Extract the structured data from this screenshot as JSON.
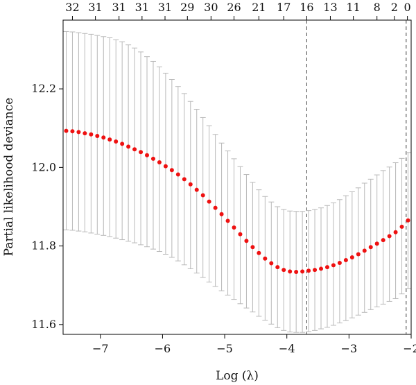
{
  "chart_data": {
    "type": "scatter",
    "xlabel": "Log (λ)",
    "ylabel": "Partial likelihood deviance",
    "xlim": [
      -7.6,
      -2.0
    ],
    "ylim": [
      11.575,
      12.375
    ],
    "x_ticks": [
      -7,
      -6,
      -5,
      -4,
      -3,
      -2
    ],
    "y_ticks": [
      11.6,
      11.8,
      12.0,
      12.2
    ],
    "x_tick_labels": [
      "−7",
      "−6",
      "−5",
      "−4",
      "−3",
      "−2"
    ],
    "y_tick_labels": [
      "11.6",
      "11.8",
      "12.0",
      "12.2"
    ],
    "top_axis": {
      "x": [
        -7.45,
        -7.08,
        -6.7,
        -6.33,
        -5.96,
        -5.6,
        -5.22,
        -4.85,
        -4.45,
        -4.05,
        -3.68,
        -3.3,
        -2.93,
        -2.55,
        -2.27,
        -2.06
      ],
      "labels": [
        "32",
        "31",
        "31",
        "31",
        "31",
        "29",
        "30",
        "26",
        "21",
        "17",
        "16",
        "13",
        "11",
        "8",
        "2",
        "0"
      ]
    },
    "vlines": [
      -3.68,
      -2.08
    ],
    "point_color": "#ee1111",
    "errorbar_color": "#b8b8b8",
    "series": [
      {
        "x": [
          -7.55,
          -7.45,
          -7.35,
          -7.25,
          -7.15,
          -7.05,
          -6.95,
          -6.85,
          -6.75,
          -6.65,
          -6.55,
          -6.45,
          -6.35,
          -6.25,
          -6.15,
          -6.05,
          -5.95,
          -5.85,
          -5.75,
          -5.65,
          -5.55,
          -5.45,
          -5.35,
          -5.25,
          -5.15,
          -5.05,
          -4.95,
          -4.85,
          -4.75,
          -4.65,
          -4.55,
          -4.45,
          -4.35,
          -4.25,
          -4.15,
          -4.05,
          -3.95,
          -3.85,
          -3.75,
          -3.65,
          -3.55,
          -3.45,
          -3.35,
          -3.25,
          -3.15,
          -3.05,
          -2.95,
          -2.85,
          -2.75,
          -2.65,
          -2.55,
          -2.45,
          -2.35,
          -2.25,
          -2.15,
          -2.05
        ],
        "y": [
          12.093,
          12.092,
          12.09,
          12.087,
          12.084,
          12.08,
          12.076,
          12.071,
          12.066,
          12.06,
          12.053,
          12.046,
          12.039,
          12.031,
          12.022,
          12.013,
          12.003,
          11.993,
          11.982,
          11.97,
          11.957,
          11.943,
          11.929,
          11.913,
          11.897,
          11.881,
          11.864,
          11.847,
          11.83,
          11.813,
          11.797,
          11.782,
          11.768,
          11.756,
          11.746,
          11.739,
          11.735,
          11.734,
          11.735,
          11.737,
          11.739,
          11.742,
          11.746,
          11.751,
          11.757,
          11.764,
          11.771,
          11.779,
          11.788,
          11.797,
          11.806,
          11.815,
          11.825,
          11.835,
          11.849,
          11.865
        ],
        "upper": [
          12.346,
          12.345,
          12.343,
          12.341,
          12.339,
          12.336,
          12.333,
          12.33,
          12.325,
          12.32,
          12.312,
          12.304,
          12.294,
          12.282,
          12.27,
          12.256,
          12.24,
          12.224,
          12.206,
          12.188,
          12.168,
          12.148,
          12.127,
          12.106,
          12.084,
          12.062,
          12.042,
          12.022,
          12.002,
          11.982,
          11.962,
          11.943,
          11.926,
          11.912,
          11.9,
          11.893,
          11.889,
          11.888,
          11.888,
          11.89,
          11.893,
          11.897,
          11.903,
          11.91,
          11.918,
          11.928,
          11.938,
          11.948,
          11.96,
          11.97,
          11.981,
          11.992,
          12.001,
          12.012,
          12.023,
          12.038
        ],
        "lower": [
          11.841,
          11.84,
          11.838,
          11.836,
          11.833,
          11.83,
          11.827,
          11.824,
          11.82,
          11.816,
          11.812,
          11.808,
          11.803,
          11.798,
          11.792,
          11.786,
          11.779,
          11.771,
          11.762,
          11.752,
          11.742,
          11.731,
          11.72,
          11.708,
          11.697,
          11.686,
          11.675,
          11.664,
          11.653,
          11.642,
          11.632,
          11.621,
          11.611,
          11.601,
          11.592,
          11.585,
          11.581,
          11.58,
          11.58,
          11.582,
          11.585,
          11.589,
          11.593,
          11.598,
          11.604,
          11.61,
          11.617,
          11.624,
          11.631,
          11.638,
          11.645,
          11.652,
          11.659,
          11.666,
          11.678,
          11.692
        ]
      }
    ]
  }
}
